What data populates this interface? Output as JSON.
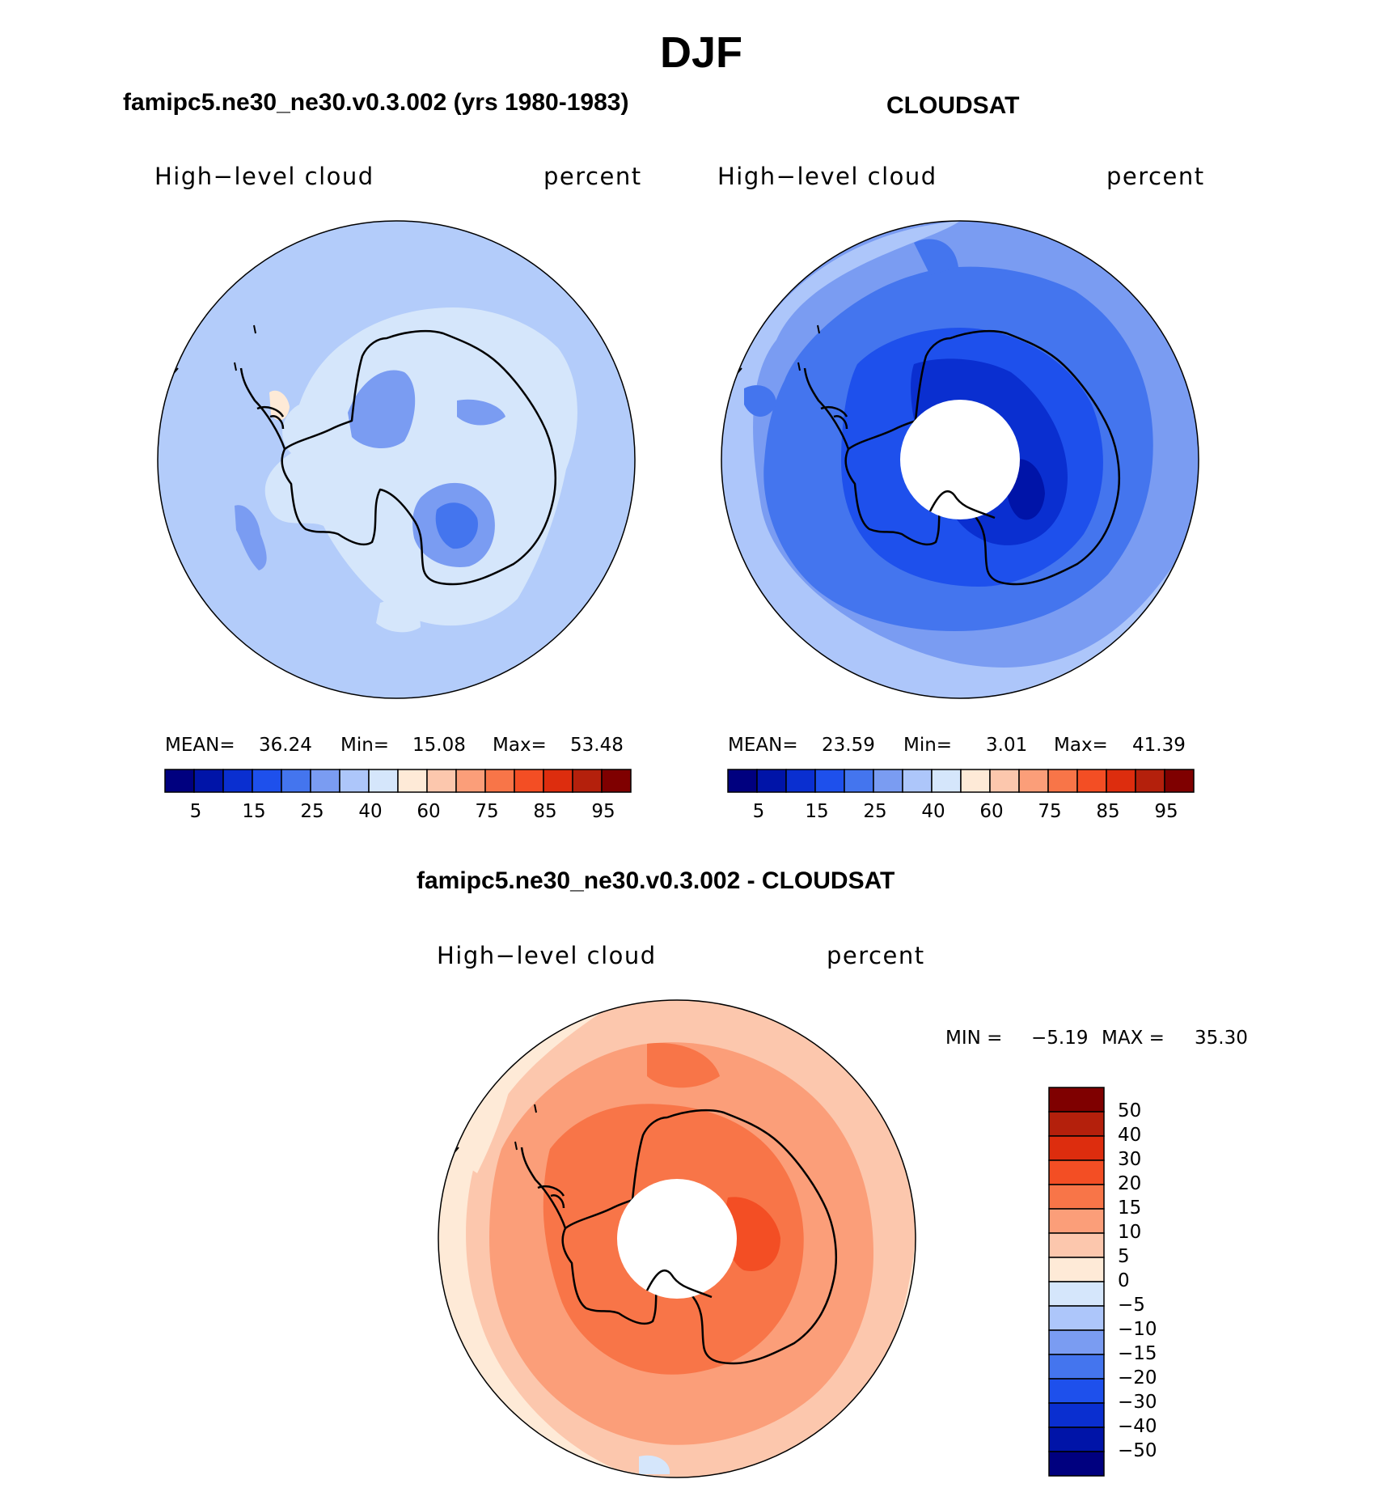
{
  "page": {
    "title": "DJF"
  },
  "panels": {
    "model": {
      "heading": "famipc5.ne30_ne30.v0.3.002 (yrs 1980-1983)",
      "variable": "High−level cloud",
      "units": "percent",
      "mean_label": "MEAN=",
      "mean_value": "36.24",
      "min_label": "Min=",
      "min_value": "15.08",
      "max_label": "Max=",
      "max_value": "53.48"
    },
    "obs": {
      "heading": "CLOUDSAT",
      "variable": "High−level cloud",
      "units": "percent",
      "mean_label": "MEAN=",
      "mean_value": "23.59",
      "min_label": "Min=",
      "min_value": "3.01",
      "max_label": "Max=",
      "max_value": "41.39"
    },
    "diff": {
      "heading": "famipc5.ne30_ne30.v0.3.002 - CLOUDSAT",
      "variable": "High−level cloud",
      "units": "percent",
      "min_label": "MIN =",
      "min_value": "−5.19",
      "max_label": "MAX =",
      "max_value": "35.30"
    }
  },
  "colorbars": {
    "horizontal": {
      "tick_labels": [
        "5",
        "15",
        "25",
        "40",
        "60",
        "75",
        "85",
        "95"
      ],
      "colors": [
        "#00007f",
        "#0014a8",
        "#0a2fd0",
        "#1e50ec",
        "#4475ee",
        "#7a9cf2",
        "#adc6fa",
        "#d5e6fb",
        "#feead7",
        "#fcc7ad",
        "#fb9e79",
        "#f87548",
        "#f34e24",
        "#dd2d0e",
        "#b4200c",
        "#7f0000"
      ]
    },
    "vertical": {
      "tick_labels": [
        "50",
        "40",
        "30",
        "20",
        "15",
        "10",
        "5",
        "0",
        "−5",
        "−10",
        "−15",
        "−20",
        "−30",
        "−40",
        "−50"
      ],
      "colors": [
        "#7f0000",
        "#b4200c",
        "#dd2d0e",
        "#f34e24",
        "#f87548",
        "#fb9e79",
        "#fcc7ad",
        "#feead7",
        "#d5e6fb",
        "#adc6fa",
        "#7a9cf2",
        "#4475ee",
        "#1e50ec",
        "#0a2fd0",
        "#0014a8",
        "#00007f"
      ]
    }
  },
  "fields": {
    "model_base": "#b3ccfa",
    "obs_base": "#7a9cf2",
    "diff_base": "#fcc7ad"
  }
}
